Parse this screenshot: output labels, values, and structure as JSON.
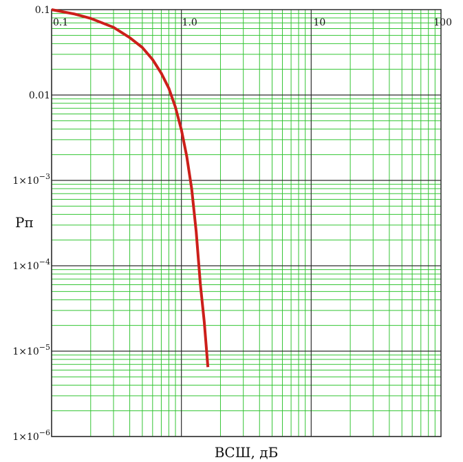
{
  "chart_data": {
    "type": "line",
    "title": "",
    "xlabel": "ВСШ, дБ",
    "ylabel": "Рп",
    "x_scale": "log",
    "y_scale": "log",
    "xlim": [
      0.1,
      100
    ],
    "ylim": [
      1e-06,
      0.1
    ],
    "x_ticks": [
      {
        "value": 0.1,
        "label": "0.1"
      },
      {
        "value": 1,
        "label": "1.0"
      },
      {
        "value": 10,
        "label": "10"
      },
      {
        "value": 100,
        "label": "100"
      }
    ],
    "y_ticks": [
      {
        "value": 0.1,
        "label": "0.1",
        "mantissa": "",
        "exp": ""
      },
      {
        "value": 0.01,
        "label": "0.01",
        "mantissa": "",
        "exp": ""
      },
      {
        "value": 0.001,
        "label": "",
        "mantissa": "1×10",
        "exp": "−3"
      },
      {
        "value": 0.0001,
        "label": "",
        "mantissa": "1×10",
        "exp": "−4"
      },
      {
        "value": 1e-05,
        "label": "",
        "mantissa": "1×10",
        "exp": "−5"
      },
      {
        "value": 1e-06,
        "label": "",
        "mantissa": "1×10",
        "exp": "−6"
      }
    ],
    "grid": true,
    "series": [
      {
        "name": "",
        "color": "#cc1f1a",
        "points": [
          [
            0.1,
            0.1
          ],
          [
            0.15,
            0.089
          ],
          [
            0.2,
            0.079
          ],
          [
            0.3,
            0.062
          ],
          [
            0.4,
            0.047
          ],
          [
            0.5,
            0.036
          ],
          [
            0.6,
            0.026
          ],
          [
            0.7,
            0.018
          ],
          [
            0.8,
            0.012
          ],
          [
            0.9,
            0.0072
          ],
          [
            1.0,
            0.0039
          ],
          [
            1.1,
            0.0019
          ],
          [
            1.2,
            0.0008
          ],
          [
            1.3,
            0.00025
          ],
          [
            1.4,
            6.1e-05
          ],
          [
            1.5,
            2.2e-05
          ],
          [
            1.6,
            6.5e-06
          ]
        ]
      }
    ],
    "colors": {
      "major_grid": "#2b2b2b",
      "minor_grid": "#33c433",
      "frame": "#2b2b2b"
    }
  }
}
